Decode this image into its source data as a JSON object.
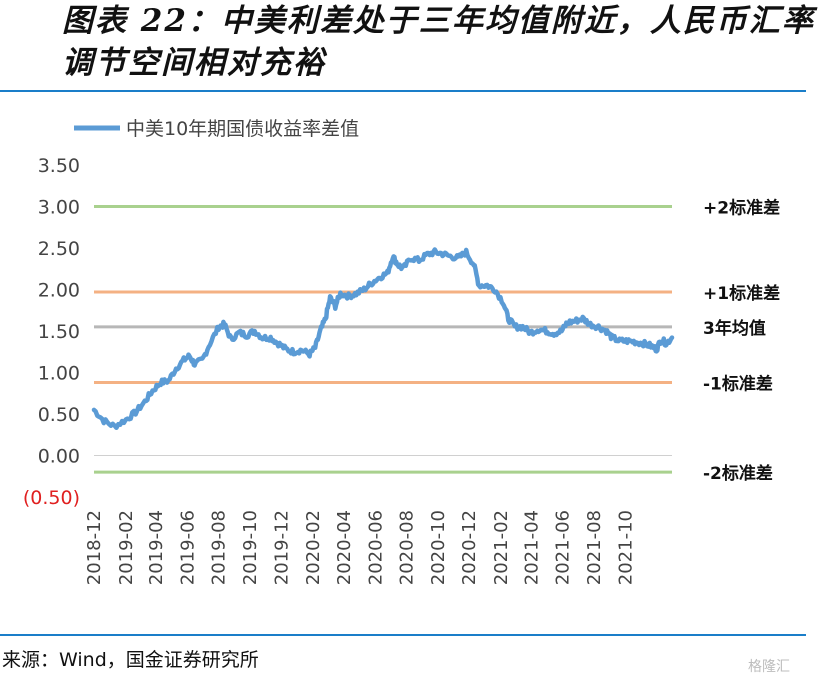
{
  "title": "图表 22：中美利差处于三年均值附近，人民币汇率调节空间相对充裕",
  "source": "来源：Wind，国金证券研究所",
  "watermark": "格隆汇",
  "chart_data": {
    "type": "line",
    "title": "",
    "xlabel": "",
    "ylabel": "",
    "ylim": [
      -0.5,
      3.5
    ],
    "y_ticks": [
      3.5,
      3.0,
      2.5,
      2.0,
      1.5,
      1.0,
      0.5,
      0.0,
      -0.5
    ],
    "y_tick_labels": [
      "3.50",
      "3.00",
      "2.50",
      "2.00",
      "1.50",
      "1.00",
      "0.50",
      "0.00",
      "(0.50)"
    ],
    "x_tick_labels": [
      "2018-12",
      "2019-02",
      "2019-04",
      "2019-06",
      "2019-08",
      "2019-10",
      "2019-12",
      "2020-02",
      "2020-04",
      "2020-06",
      "2020-08",
      "2020-10",
      "2020-12",
      "2021-02",
      "2021-04",
      "2021-06",
      "2021-08",
      "2021-10"
    ],
    "x_range": [
      "2018-12-01",
      "2021-12-31"
    ],
    "legend": {
      "position": "top-left",
      "label": "中美10年期国债收益率差值"
    },
    "series": [
      {
        "name": "中美10年期国债收益率差值",
        "color": "#5b9bd5",
        "points": [
          [
            "2018-12-01",
            0.55
          ],
          [
            "2018-12-20",
            0.42
          ],
          [
            "2019-01-10",
            0.35
          ],
          [
            "2019-02-01",
            0.43
          ],
          [
            "2019-02-20",
            0.52
          ],
          [
            "2019-03-10",
            0.65
          ],
          [
            "2019-03-25",
            0.78
          ],
          [
            "2019-04-10",
            0.88
          ],
          [
            "2019-04-25",
            0.9
          ],
          [
            "2019-05-10",
            1.05
          ],
          [
            "2019-05-25",
            1.15
          ],
          [
            "2019-06-05",
            1.2
          ],
          [
            "2019-06-15",
            1.1
          ],
          [
            "2019-06-30",
            1.15
          ],
          [
            "2019-07-15",
            1.35
          ],
          [
            "2019-08-01",
            1.55
          ],
          [
            "2019-08-12",
            1.58
          ],
          [
            "2019-08-25",
            1.4
          ],
          [
            "2019-09-10",
            1.48
          ],
          [
            "2019-09-25",
            1.45
          ],
          [
            "2019-10-10",
            1.5
          ],
          [
            "2019-10-25",
            1.42
          ],
          [
            "2019-11-10",
            1.42
          ],
          [
            "2019-11-25",
            1.35
          ],
          [
            "2019-12-10",
            1.28
          ],
          [
            "2019-12-25",
            1.25
          ],
          [
            "2020-01-10",
            1.27
          ],
          [
            "2020-01-25",
            1.22
          ],
          [
            "2020-02-05",
            1.3
          ],
          [
            "2020-02-15",
            1.5
          ],
          [
            "2020-02-25",
            1.65
          ],
          [
            "2020-03-05",
            1.9
          ],
          [
            "2020-03-15",
            1.8
          ],
          [
            "2020-03-25",
            1.95
          ],
          [
            "2020-04-10",
            1.92
          ],
          [
            "2020-04-25",
            1.95
          ],
          [
            "2020-05-10",
            2.0
          ],
          [
            "2020-05-25",
            2.08
          ],
          [
            "2020-06-10",
            2.15
          ],
          [
            "2020-06-25",
            2.2
          ],
          [
            "2020-07-05",
            2.4
          ],
          [
            "2020-07-15",
            2.3
          ],
          [
            "2020-07-25",
            2.25
          ],
          [
            "2020-08-10",
            2.38
          ],
          [
            "2020-08-25",
            2.35
          ],
          [
            "2020-09-10",
            2.42
          ],
          [
            "2020-09-25",
            2.45
          ],
          [
            "2020-10-10",
            2.43
          ],
          [
            "2020-10-25",
            2.4
          ],
          [
            "2020-11-10",
            2.38
          ],
          [
            "2020-11-25",
            2.45
          ],
          [
            "2020-12-10",
            2.3
          ],
          [
            "2020-12-20",
            2.05
          ],
          [
            "2021-01-05",
            2.05
          ],
          [
            "2021-01-20",
            2.0
          ],
          [
            "2021-02-05",
            1.85
          ],
          [
            "2021-02-15",
            1.65
          ],
          [
            "2021-02-28",
            1.55
          ],
          [
            "2021-03-15",
            1.55
          ],
          [
            "2021-03-30",
            1.48
          ],
          [
            "2021-04-15",
            1.52
          ],
          [
            "2021-04-30",
            1.5
          ],
          [
            "2021-05-15",
            1.47
          ],
          [
            "2021-05-30",
            1.5
          ],
          [
            "2021-06-10",
            1.6
          ],
          [
            "2021-06-25",
            1.62
          ],
          [
            "2021-07-10",
            1.65
          ],
          [
            "2021-07-25",
            1.58
          ],
          [
            "2021-08-10",
            1.55
          ],
          [
            "2021-08-25",
            1.5
          ],
          [
            "2021-09-05",
            1.42
          ],
          [
            "2021-09-20",
            1.38
          ],
          [
            "2021-10-05",
            1.38
          ],
          [
            "2021-10-20",
            1.37
          ],
          [
            "2021-11-05",
            1.35
          ],
          [
            "2021-11-20",
            1.32
          ],
          [
            "2021-12-01",
            1.28
          ],
          [
            "2021-12-10",
            1.4
          ],
          [
            "2021-12-20",
            1.35
          ],
          [
            "2021-12-31",
            1.42
          ]
        ]
      }
    ],
    "reference_lines": [
      {
        "label": "+2标准差",
        "value": 3.0,
        "color": "#a9d18e"
      },
      {
        "label": "+1标准差",
        "value": 1.97,
        "color": "#f4b183"
      },
      {
        "label": "3年均值",
        "value": 1.55,
        "color": "#b7b7b7"
      },
      {
        "label": "-1标准差",
        "value": 0.88,
        "color": "#f4b183"
      },
      {
        "label": "-2标准差",
        "value": -0.2,
        "color": "#a9d18e"
      }
    ],
    "grid": false
  }
}
